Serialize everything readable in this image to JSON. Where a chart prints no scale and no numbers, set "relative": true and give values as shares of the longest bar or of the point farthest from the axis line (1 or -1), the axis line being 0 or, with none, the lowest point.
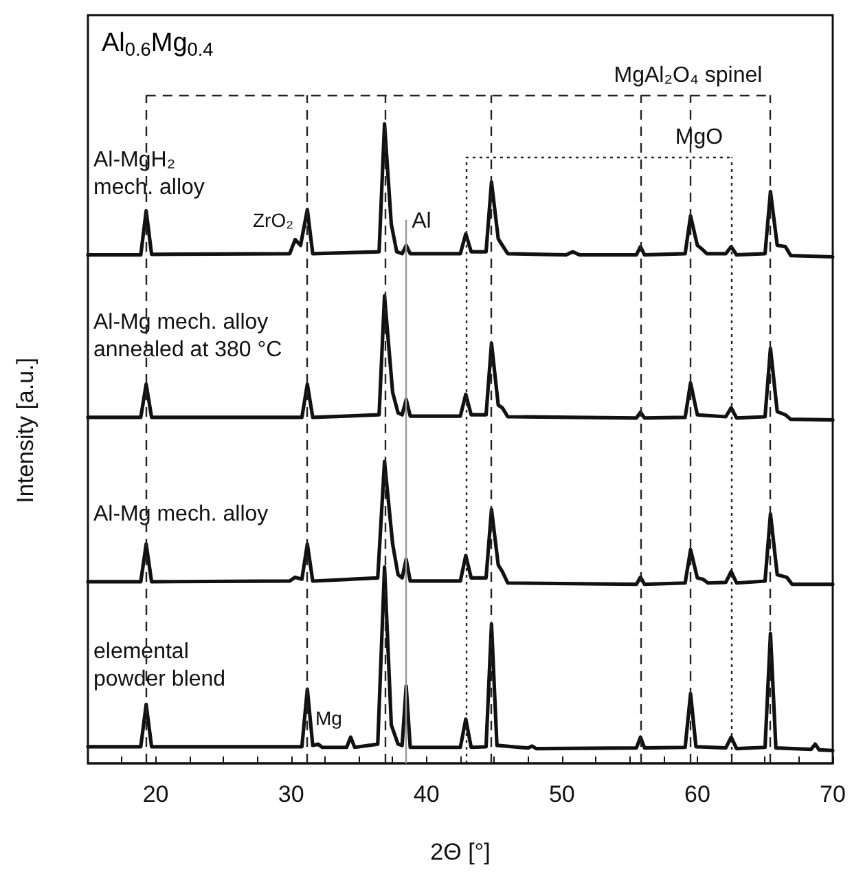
{
  "chart_data": {
    "type": "line",
    "title": "Al$_{0.6}$Mg$_{0.4}$",
    "xlabel": "2Θ [°]",
    "ylabel": "Intensity [a.u.]",
    "relative": true,
    "xlim": [
      15,
      70
    ],
    "xticks": [
      {
        "value": 17.5,
        "label": null
      },
      20,
      {
        "value": 22.5,
        "label": null
      },
      {
        "value": 25,
        "label": null
      },
      {
        "value": 27.5,
        "label": null
      },
      30,
      {
        "value": 32.5,
        "label": null
      },
      {
        "value": 35,
        "label": null
      },
      {
        "value": 37.5,
        "label": null
      },
      40,
      {
        "value": 42.5,
        "label": null
      },
      {
        "value": 45,
        "label": null
      },
      {
        "value": 47.5,
        "label": null
      },
      50,
      {
        "value": 52.5,
        "label": null
      },
      {
        "value": 55,
        "label": null
      },
      {
        "value": 57.5,
        "label": null
      },
      60,
      {
        "value": 62.5,
        "label": null
      },
      {
        "value": 65,
        "label": null
      },
      {
        "value": 67.5,
        "label": null
      },
      70
    ],
    "tick_labels": "x",
    "grid": false,
    "legend": false,
    "marker": "none",
    "line_style": "solid",
    "series": [
      {
        "name": "Al-MgH₂\nmech. alloy",
        "color": "#111111",
        "x": [
          15,
          18.9,
          19.3,
          19.7,
          29.9,
          30.3,
          30.7,
          31.2,
          31.6,
          36.5,
          36.9,
          37.4,
          37.8,
          38.2,
          38.5,
          38.8,
          42.5,
          42.9,
          43.3,
          44.4,
          44.8,
          45.3,
          45.6,
          46.0,
          50.3,
          50.8,
          51.3,
          55.5,
          55.8,
          56.1,
          59.1,
          59.5,
          60.0,
          60.3,
          60.7,
          62.1,
          62.5,
          62.9,
          65.0,
          65.4,
          65.9,
          66.5,
          66.9,
          70
        ],
        "values": [
          0.795,
          0.795,
          0.864,
          0.796,
          0.797,
          0.819,
          0.81,
          0.866,
          0.797,
          0.8,
          1.0,
          0.843,
          0.8,
          0.797,
          0.81,
          0.797,
          0.797,
          0.828,
          0.8,
          0.8,
          0.909,
          0.82,
          0.81,
          0.797,
          0.795,
          0.8,
          0.795,
          0.795,
          0.808,
          0.795,
          0.797,
          0.856,
          0.81,
          0.805,
          0.797,
          0.797,
          0.808,
          0.795,
          0.797,
          0.894,
          0.81,
          0.808,
          0.794,
          0.792
        ]
      },
      {
        "name": "Al-Mg mech. alloy\nannealed at 380 °C",
        "color": "#111111",
        "x": [
          15,
          18.9,
          19.3,
          19.7,
          30.8,
          31.2,
          31.6,
          36.5,
          36.9,
          37.5,
          37.9,
          38.2,
          38.5,
          38.8,
          42.5,
          42.9,
          43.3,
          44.4,
          44.8,
          45.3,
          45.6,
          46.0,
          55.5,
          55.8,
          56.1,
          59.1,
          59.5,
          60.0,
          62.1,
          62.5,
          62.9,
          65.0,
          65.4,
          65.9,
          66.5,
          66.9,
          70
        ],
        "values": [
          0.541,
          0.541,
          0.593,
          0.541,
          0.541,
          0.593,
          0.541,
          0.545,
          0.731,
          0.58,
          0.548,
          0.545,
          0.569,
          0.543,
          0.543,
          0.577,
          0.545,
          0.545,
          0.657,
          0.56,
          0.556,
          0.542,
          0.54,
          0.549,
          0.54,
          0.541,
          0.595,
          0.545,
          0.542,
          0.556,
          0.54,
          0.542,
          0.649,
          0.55,
          0.545,
          0.538,
          0.537
        ]
      },
      {
        "name": "Al-Mg mech. alloy",
        "color": "#111111",
        "x": [
          15,
          18.9,
          19.3,
          19.7,
          29.9,
          30.3,
          30.8,
          31.2,
          31.6,
          36.4,
          36.9,
          37.5,
          37.9,
          38.2,
          38.5,
          38.8,
          42.5,
          42.9,
          43.3,
          44.4,
          44.8,
          45.3,
          45.6,
          46.0,
          55.5,
          55.8,
          56.1,
          59.1,
          59.5,
          60.0,
          60.4,
          60.8,
          62.1,
          62.5,
          62.9,
          65.0,
          65.4,
          65.9,
          66.6,
          67.0,
          70
        ],
        "values": [
          0.284,
          0.284,
          0.343,
          0.284,
          0.285,
          0.291,
          0.288,
          0.343,
          0.285,
          0.29,
          0.472,
          0.343,
          0.295,
          0.29,
          0.319,
          0.285,
          0.285,
          0.325,
          0.29,
          0.29,
          0.397,
          0.31,
          0.3,
          0.282,
          0.28,
          0.291,
          0.28,
          0.282,
          0.334,
          0.29,
          0.288,
          0.282,
          0.283,
          0.3,
          0.282,
          0.285,
          0.39,
          0.295,
          0.291,
          0.28,
          0.28
        ]
      },
      {
        "name": "elemental\npowder blend",
        "color": "#111111",
        "x": [
          15,
          18.9,
          19.3,
          19.7,
          30.8,
          31.2,
          31.6,
          32.0,
          32.3,
          34.1,
          34.4,
          34.7,
          36.4,
          36.9,
          37.4,
          37.9,
          38.2,
          38.5,
          38.8,
          42.5,
          42.9,
          43.3,
          44.4,
          44.8,
          45.2,
          47.5,
          47.8,
          48.1,
          55.5,
          55.8,
          56.1,
          59.1,
          59.5,
          59.9,
          62.1,
          62.5,
          62.9,
          65.0,
          65.4,
          65.8,
          68.4,
          68.7,
          69.0,
          70
        ],
        "values": [
          0.026,
          0.026,
          0.092,
          0.026,
          0.026,
          0.116,
          0.028,
          0.03,
          0.025,
          0.025,
          0.041,
          0.025,
          0.03,
          0.307,
          0.06,
          0.03,
          0.028,
          0.121,
          0.025,
          0.025,
          0.069,
          0.025,
          0.026,
          0.218,
          0.028,
          0.024,
          0.027,
          0.023,
          0.024,
          0.041,
          0.024,
          0.025,
          0.109,
          0.026,
          0.024,
          0.041,
          0.023,
          0.025,
          0.203,
          0.024,
          0.022,
          0.03,
          0.021,
          0.02
        ]
      }
    ],
    "ref_lines": [
      {
        "axis": "x",
        "value": 19.3,
        "line_style": "dashed",
        "color": "#222222"
      },
      {
        "axis": "x",
        "value": 31.2,
        "line_style": "dashed",
        "color": "#222222"
      },
      {
        "axis": "x",
        "value": 36.9,
        "line_style": "dashed",
        "color": "#222222"
      },
      {
        "axis": "x",
        "value": 44.8,
        "line_style": "dashed",
        "color": "#222222"
      },
      {
        "axis": "x",
        "value": 55.8,
        "line_style": "dashed",
        "color": "#222222"
      },
      {
        "axis": "x",
        "value": 59.5,
        "line_style": "dashed",
        "color": "#222222"
      },
      {
        "axis": "x",
        "value": 65.4,
        "line_style": "dashed",
        "color": "#222222",
        "label": "MgAl₂O₄ spinel"
      },
      {
        "axis": "x",
        "value": 42.9,
        "line_style": "dotted",
        "color": "#222222"
      },
      {
        "axis": "x",
        "value": 62.5,
        "line_style": "dotted",
        "color": "#222222",
        "label": "MgO"
      },
      {
        "axis": "x",
        "value": 38.5,
        "line_style": "solid",
        "color": "#999999",
        "label": "Al"
      }
    ],
    "annotations": [
      {
        "text": "ZrO₂",
        "x": 30.3,
        "y": 0.819
      },
      {
        "text": "Mg",
        "x": 34.4,
        "y": 0.041
      }
    ]
  }
}
